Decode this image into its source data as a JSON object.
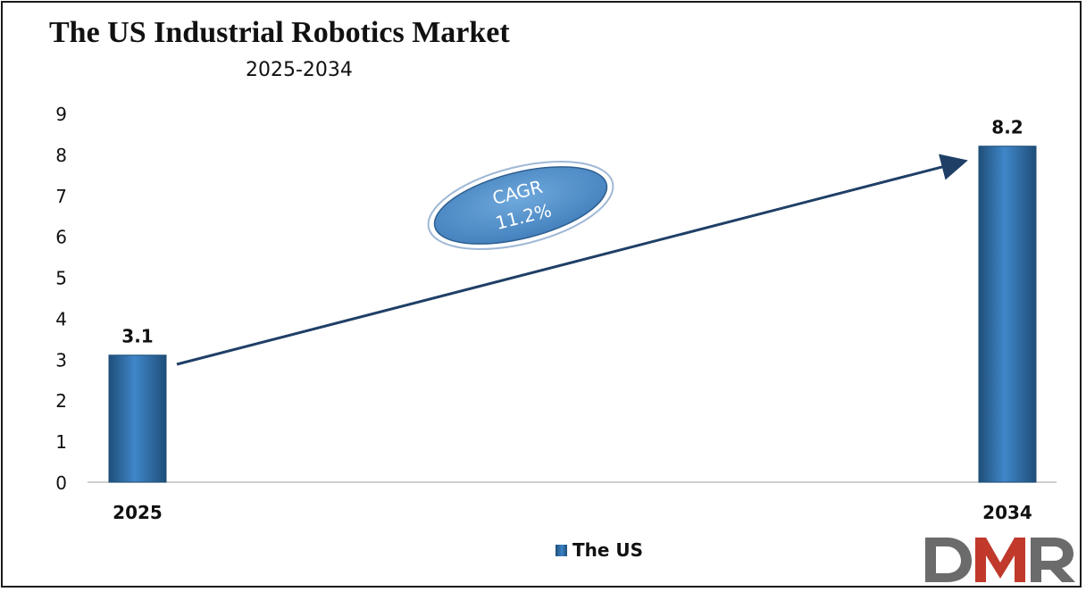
{
  "colors": {
    "bar": "#2e75b6",
    "bar_dark": "#1f4e79",
    "arrow": "#1f3f66",
    "badge": "#5b9bd5",
    "logo_gray": "#6b6b6b",
    "logo_red": "#c0392b"
  },
  "logo": {
    "text": "DMR"
  },
  "chart_data": {
    "type": "bar",
    "title": "The US Industrial Robotics Market",
    "subtitle": "2025-2034",
    "categories": [
      "2025",
      "2034"
    ],
    "series": [
      {
        "name": "The US",
        "values": [
          3.1,
          8.2
        ]
      }
    ],
    "data_labels": [
      "3.1",
      "8.2"
    ],
    "ylim": [
      0,
      9
    ],
    "yticks": [
      "0",
      "1",
      "2",
      "3",
      "4",
      "5",
      "6",
      "7",
      "8",
      "9"
    ],
    "grid": false,
    "legend_position": "bottom",
    "annotation": {
      "line1": "CAGR",
      "line2": "11.2%"
    }
  }
}
